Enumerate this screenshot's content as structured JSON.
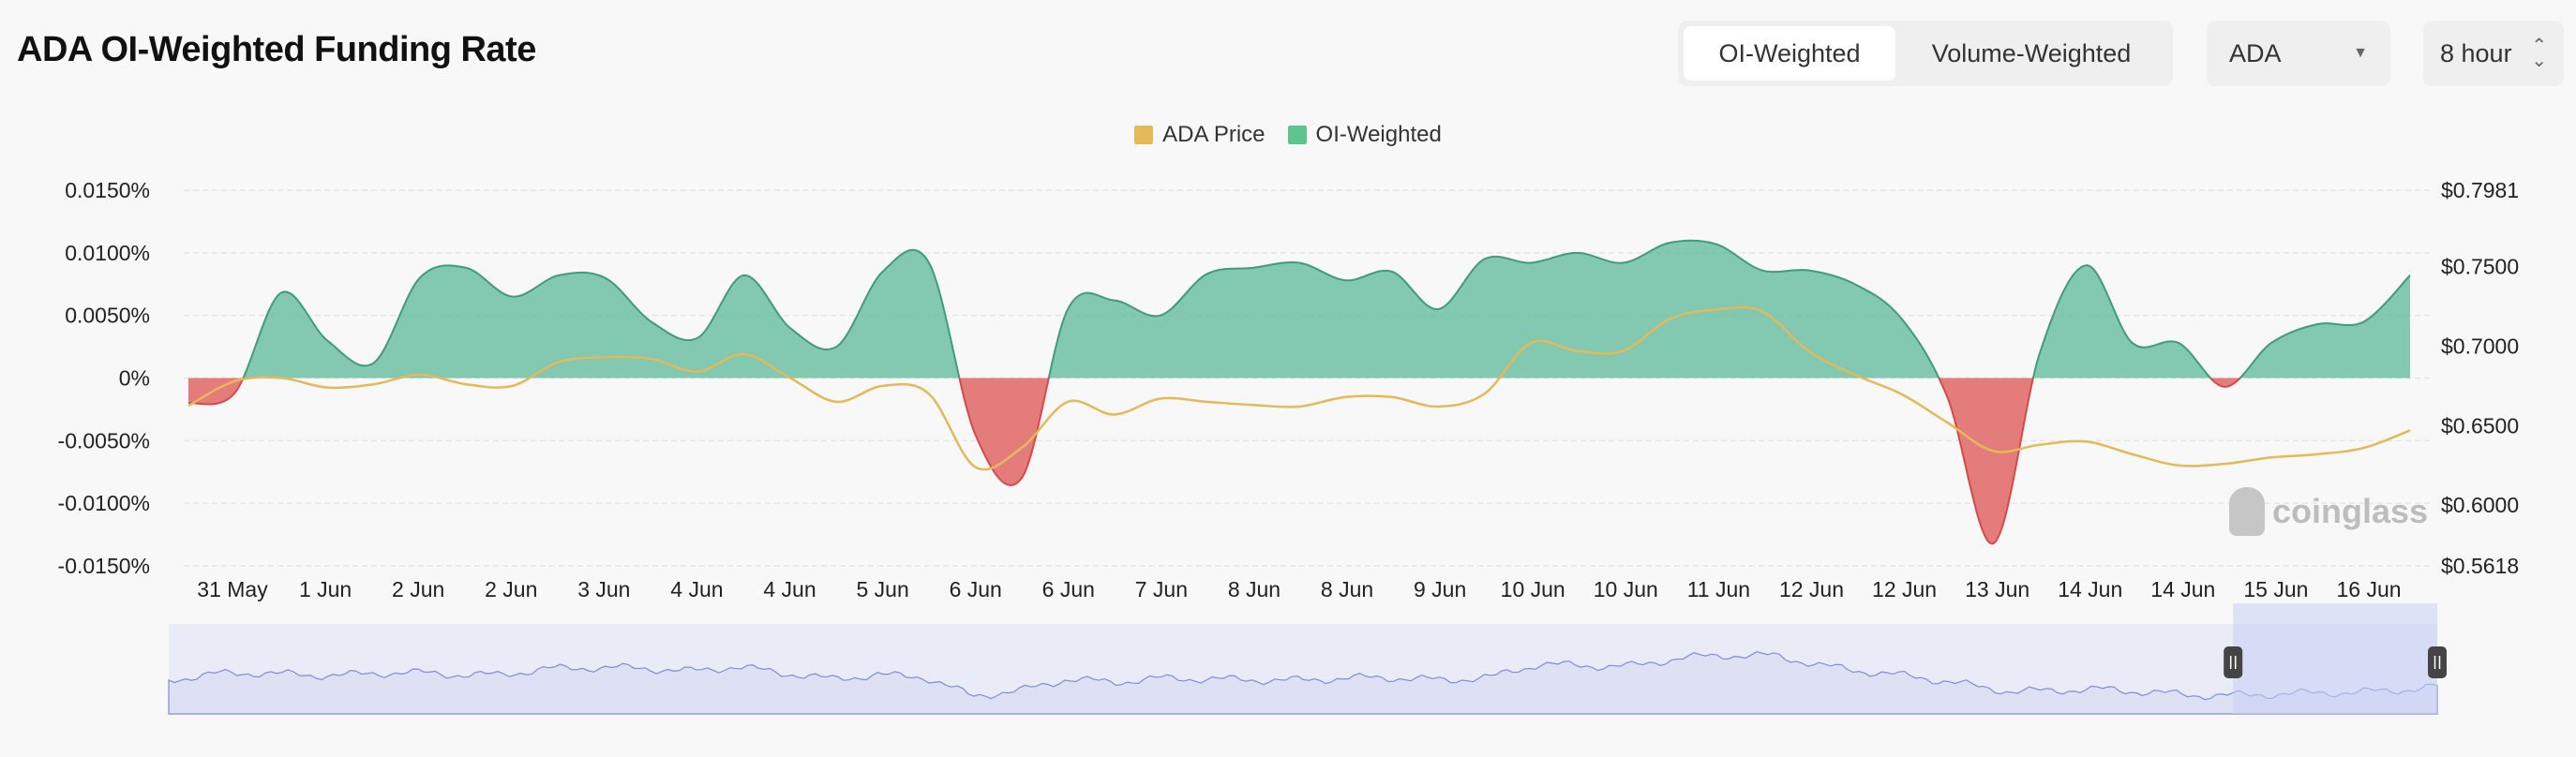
{
  "header": {
    "title": "ADA OI-Weighted Funding Rate",
    "weighting_tabs": [
      {
        "label": "OI-Weighted",
        "active": true
      },
      {
        "label": "Volume-Weighted",
        "active": false
      }
    ],
    "coin_select": {
      "value": "ADA",
      "icon": "caret-down-icon"
    },
    "interval_select": {
      "value": "8 hour",
      "icon": "up-down-chevron-icon"
    }
  },
  "watermark": "coinglass",
  "chart_data": {
    "type": "area",
    "title": "",
    "legend": {
      "position": "top-center",
      "entries": [
        {
          "label": "ADA Price",
          "color": "#e3b95a"
        },
        {
          "label": "OI-Weighted",
          "color": "#5cc48c"
        }
      ]
    },
    "x_tick_labels": [
      "31 May",
      "1 Jun",
      "2 Jun",
      "2 Jun",
      "3 Jun",
      "4 Jun",
      "4 Jun",
      "5 Jun",
      "6 Jun",
      "6 Jun",
      "7 Jun",
      "8 Jun",
      "8 Jun",
      "9 Jun",
      "10 Jun",
      "10 Jun",
      "11 Jun",
      "12 Jun",
      "12 Jun",
      "13 Jun",
      "14 Jun",
      "14 Jun",
      "15 Jun",
      "16 Jun"
    ],
    "y_left": {
      "ticks": [
        "0.0150%",
        "0.0100%",
        "0.0050%",
        "0%",
        "-0.0050%",
        "-0.0100%",
        "-0.0150%"
      ],
      "range": [
        -0.015,
        0.015
      ],
      "unit": "%"
    },
    "y_right": {
      "ticks": [
        "$0.7981",
        "$0.7500",
        "$0.7000",
        "$0.6500",
        "$0.6000",
        "$0.5618"
      ],
      "range": [
        0.5618,
        0.7981
      ]
    },
    "grid": true,
    "colors": {
      "positive": "#5cb89a",
      "negative": "#e06666",
      "price": "#e3b95a",
      "navigator": "#7b8fd6"
    },
    "series": [
      {
        "name": "OI-Weighted",
        "axis": "left",
        "values": [
          -0.002,
          -0.0012,
          0.0068,
          0.003,
          0.0012,
          0.008,
          0.0088,
          0.0065,
          0.0082,
          0.008,
          0.0045,
          0.0032,
          0.0082,
          0.004,
          0.0025,
          0.0085,
          0.0092,
          -0.0045,
          -0.008,
          0.0055,
          0.0062,
          0.005,
          0.0083,
          0.0088,
          0.0092,
          0.0078,
          0.0085,
          0.0055,
          0.0095,
          0.0092,
          0.01,
          0.0092,
          0.0108,
          0.0107,
          0.0086,
          0.0086,
          0.0075,
          0.0048,
          -0.0015,
          -0.0132,
          0.002,
          0.009,
          0.0028,
          0.0028,
          -0.0007,
          0.0028,
          0.0043,
          0.0045,
          0.0082
        ]
      },
      {
        "name": "ADA Price",
        "axis": "right",
        "values": [
          0.6625,
          0.678,
          0.68,
          0.674,
          0.676,
          0.682,
          0.676,
          0.675,
          0.69,
          0.693,
          0.692,
          0.684,
          0.695,
          0.68,
          0.665,
          0.675,
          0.67,
          0.624,
          0.636,
          0.665,
          0.657,
          0.667,
          0.665,
          0.663,
          0.662,
          0.668,
          0.668,
          0.662,
          0.67,
          0.702,
          0.697,
          0.697,
          0.717,
          0.723,
          0.722,
          0.697,
          0.682,
          0.67,
          0.652,
          0.634,
          0.638,
          0.64,
          0.632,
          0.625,
          0.626,
          0.63,
          0.632,
          0.636,
          0.647
        ]
      }
    ],
    "navigator": {
      "selected_range_fraction": [
        0.91,
        1.0
      ]
    }
  }
}
